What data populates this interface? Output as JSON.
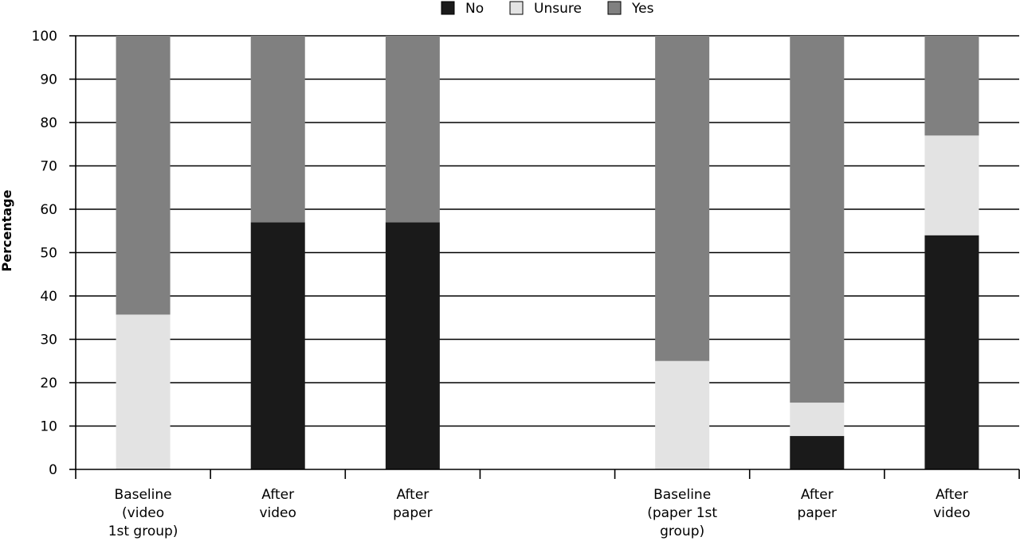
{
  "chart_data": {
    "type": "bar",
    "stacked": true,
    "categories": [
      "Baseline (video 1st group)",
      "After video",
      "After paper",
      "",
      "Baseline (paper 1st group)",
      "After paper",
      "After video"
    ],
    "category_lines": [
      [
        "Baseline",
        "(video",
        "1st group)"
      ],
      [
        "After",
        "video"
      ],
      [
        "After",
        "paper"
      ],
      [],
      [
        "Baseline",
        "(paper 1st",
        "group)"
      ],
      [
        "After",
        "paper"
      ],
      [
        "After",
        "video"
      ]
    ],
    "series": [
      {
        "name": "No",
        "color": "#1a1a1a",
        "values": [
          0,
          57,
          57,
          null,
          0,
          7.7,
          54
        ]
      },
      {
        "name": "Unsure",
        "color": "#e3e3e3",
        "values": [
          35.7,
          0,
          0,
          null,
          25,
          7.7,
          23
        ]
      },
      {
        "name": "Yes",
        "color": "#808080",
        "values": [
          64.3,
          43,
          43,
          null,
          75,
          84.6,
          23
        ]
      }
    ],
    "ylabel": "Percentage",
    "xlabel": "",
    "ylim": [
      0,
      100
    ],
    "yticks": [
      0,
      10,
      20,
      30,
      40,
      50,
      60,
      70,
      80,
      90,
      100
    ],
    "grid": true,
    "legend": "top-center"
  }
}
